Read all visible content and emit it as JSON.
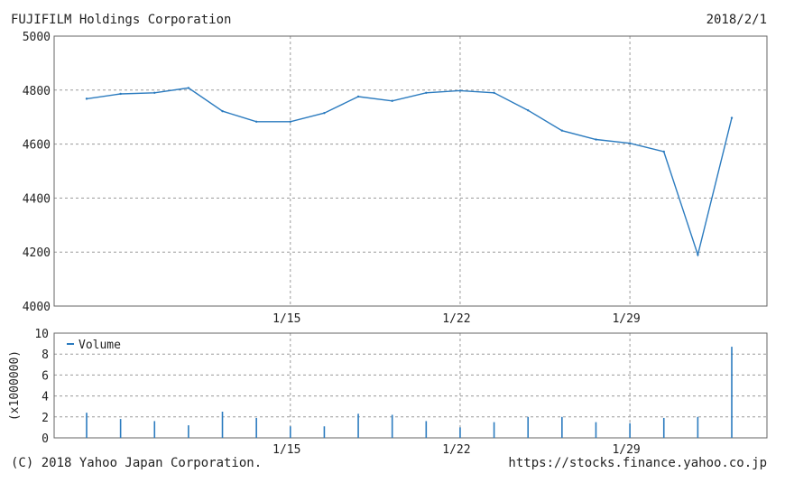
{
  "header": {
    "company": "FUJIFILM Holdings Corporation",
    "date": "2018/2/1"
  },
  "footer": {
    "copyright": "(C) 2018 Yahoo Japan Corporation.",
    "url": "https://stocks.finance.yahoo.co.jp"
  },
  "colors": {
    "line": "#2b7bbf",
    "grid": "#9a9a9a",
    "frame": "#666666"
  },
  "chart_data": [
    {
      "type": "line",
      "title": "",
      "x": [
        "1/4",
        "1/5",
        "1/9",
        "1/10",
        "1/11",
        "1/12",
        "1/15",
        "1/16",
        "1/17",
        "1/18",
        "1/19",
        "1/22",
        "1/23",
        "1/24",
        "1/25",
        "1/26",
        "1/29",
        "1/30",
        "1/31",
        "2/1"
      ],
      "x_tick_labels": [
        "1/15",
        "1/22",
        "1/29"
      ],
      "series": [
        {
          "name": "",
          "values": [
            4768,
            4786,
            4790,
            4808,
            4722,
            4683,
            4683,
            4715,
            4776,
            4760,
            4790,
            4798,
            4790,
            4725,
            4650,
            4617,
            4603,
            4572,
            4190,
            4697
          ]
        }
      ],
      "ylim": [
        4000,
        5000
      ],
      "y_ticks": [
        4000,
        4200,
        4400,
        4600,
        4800,
        5000
      ],
      "grid": true
    },
    {
      "type": "bar",
      "title": "",
      "ylabel": "(x1000000)",
      "legend": {
        "label": "Volume",
        "position": "top-left"
      },
      "x_tick_labels": [
        "1/15",
        "1/22",
        "1/29"
      ],
      "series": [
        {
          "name": "Volume",
          "values": [
            2.4,
            1.8,
            1.6,
            1.2,
            2.5,
            1.9,
            1.1,
            1.1,
            2.3,
            2.2,
            1.6,
            1.0,
            1.5,
            2.0,
            2.0,
            1.5,
            1.4,
            1.9,
            2.0,
            8.7
          ]
        }
      ],
      "ylim": [
        0,
        10
      ],
      "y_ticks": [
        0,
        2,
        4,
        6,
        8,
        10
      ],
      "grid": true
    }
  ]
}
